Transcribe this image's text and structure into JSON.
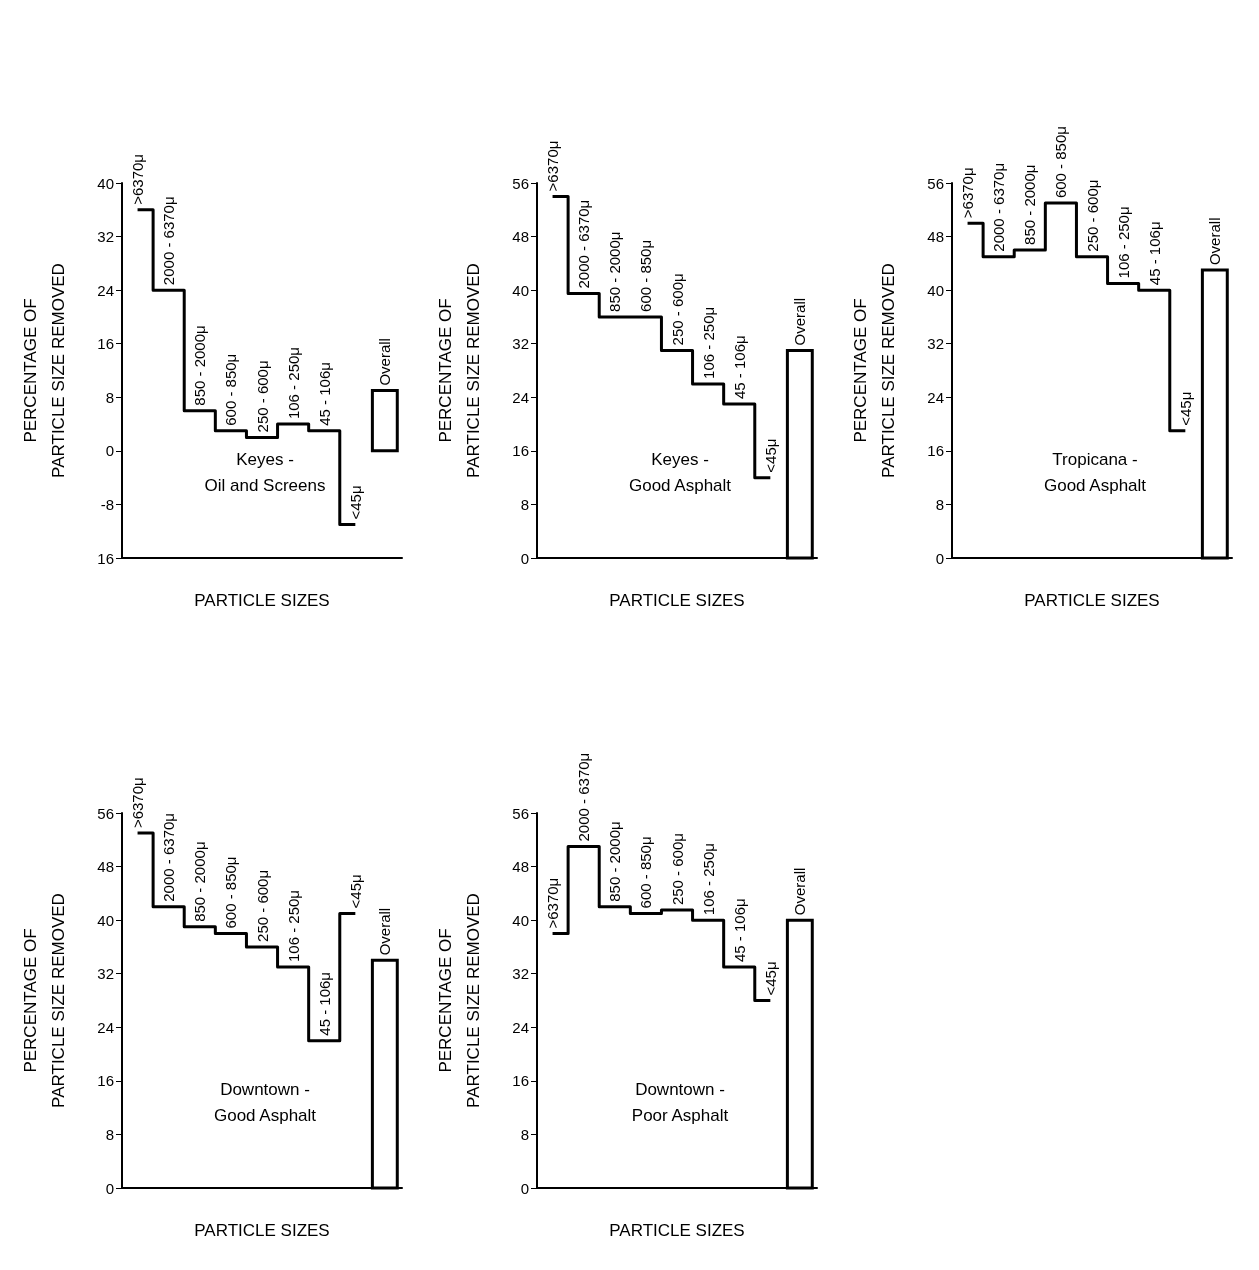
{
  "chart_data": [
    {
      "type": "step",
      "title": "Keyes -\nOil and Screens",
      "xlabel": "PARTICLE SIZES",
      "ylabel": "PERCENTAGE OF\nPARTICLE SIZE REMOVED",
      "categories": [
        ">6370μ",
        "2000 - 6370μ",
        "850 - 2000μ",
        "600 - 850μ",
        "250 - 600μ",
        "106 - 250μ",
        "45 - 106μ",
        "<45μ",
        "Overall"
      ],
      "series": [
        {
          "type": "step",
          "color": "#000000",
          "values": [
            36,
            24,
            6,
            3,
            2,
            4,
            3,
            -11,
            null
          ]
        },
        {
          "type": "bar",
          "color": "#000000",
          "values": [
            null,
            null,
            null,
            null,
            null,
            null,
            null,
            null,
            9
          ]
        }
      ],
      "ylim": [
        -16,
        40
      ],
      "yticks": [
        {
          "value": -16,
          "label": "16"
        },
        -8,
        0,
        8,
        16,
        24,
        32,
        40
      ],
      "tick_labels": "y"
    },
    {
      "type": "step",
      "title": "Keyes -\nGood Asphalt",
      "xlabel": "PARTICLE SIZES",
      "ylabel": "PERCENTAGE OF\nPARTICLE SIZE REMOVED",
      "categories": [
        ">6370μ",
        "2000 - 6370μ",
        "850 - 2000μ",
        "600 - 850μ",
        "250 - 600μ",
        "106 - 250μ",
        "45 - 106μ",
        "<45μ",
        "Overall"
      ],
      "series": [
        {
          "type": "step",
          "color": "#000000",
          "values": [
            54,
            39.5,
            36,
            36,
            31,
            26,
            23,
            12,
            null
          ]
        },
        {
          "type": "bar",
          "color": "#000000",
          "values": [
            null,
            null,
            null,
            null,
            null,
            null,
            null,
            null,
            31
          ]
        }
      ],
      "ylim": [
        0,
        56
      ],
      "yticks": [
        0,
        8,
        16,
        24,
        32,
        40,
        48,
        56
      ],
      "tick_labels": "y"
    },
    {
      "type": "step",
      "title": "Tropicana -\nGood Asphalt",
      "xlabel": "PARTICLE SIZES",
      "ylabel": "PERCENTAGE OF\nPARTICLE SIZE REMOVED",
      "categories": [
        ">6370μ",
        "2000 - 6370μ",
        "850 - 2000μ",
        "600 - 850μ",
        "250 - 600μ",
        "106 - 250μ",
        "45 - 106μ",
        "<45μ",
        "Overall"
      ],
      "series": [
        {
          "type": "step",
          "color": "#000000",
          "values": [
            50,
            45,
            46,
            53,
            45,
            41,
            40,
            19,
            null
          ]
        },
        {
          "type": "bar",
          "color": "#000000",
          "values": [
            null,
            null,
            null,
            null,
            null,
            null,
            null,
            null,
            43
          ]
        }
      ],
      "ylim": [
        0,
        56
      ],
      "yticks": [
        0,
        8,
        16,
        24,
        32,
        40,
        48,
        56
      ],
      "tick_labels": "y"
    },
    {
      "type": "step",
      "title": "Downtown -\nGood Asphalt",
      "xlabel": "PARTICLE SIZES",
      "ylabel": "PERCENTAGE OF\nPARTICLE SIZE REMOVED",
      "categories": [
        ">6370μ",
        "2000 - 6370μ",
        "850 - 2000μ",
        "600 - 850μ",
        "250 - 600μ",
        "106 - 250μ",
        "45 - 106μ",
        "<45μ",
        "Overall"
      ],
      "series": [
        {
          "type": "step",
          "color": "#000000",
          "values": [
            53,
            42,
            39,
            38,
            36,
            33,
            22,
            41,
            null
          ]
        },
        {
          "type": "bar",
          "color": "#000000",
          "values": [
            null,
            null,
            null,
            null,
            null,
            null,
            null,
            null,
            34
          ]
        }
      ],
      "ylim": [
        0,
        56
      ],
      "yticks": [
        0,
        8,
        16,
        24,
        32,
        40,
        48,
        56
      ],
      "tick_labels": "y"
    },
    {
      "type": "step",
      "title": "Downtown -\nPoor Asphalt",
      "xlabel": "PARTICLE SIZES",
      "ylabel": "PERCENTAGE OF\nPARTICLE SIZE REMOVED",
      "categories": [
        ">6370μ",
        "2000 - 6370μ",
        "850 - 2000μ",
        "600 - 850μ",
        "250 - 600μ",
        "106 - 250μ",
        "45 - 106μ",
        "<45μ",
        "Overall"
      ],
      "series": [
        {
          "type": "step",
          "color": "#000000",
          "values": [
            38,
            51,
            42,
            41,
            41.5,
            40,
            33,
            28,
            null
          ]
        },
        {
          "type": "bar",
          "color": "#000000",
          "values": [
            null,
            null,
            null,
            null,
            null,
            null,
            null,
            null,
            40
          ]
        }
      ],
      "ylim": [
        0,
        56
      ],
      "yticks": [
        0,
        8,
        16,
        24,
        32,
        40,
        48,
        56
      ],
      "tick_labels": "y"
    }
  ]
}
